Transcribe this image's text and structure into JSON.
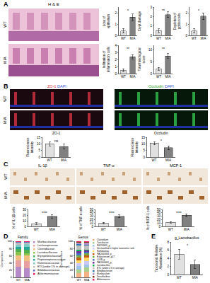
{
  "chart_data": [
    {
      "type": "bar",
      "y_label": "Loss of epithelium",
      "categories": [
        "WT",
        "MIA"
      ],
      "values": [
        0.4,
        1.6
      ],
      "errors": [
        0.2,
        0.3
      ],
      "colors": [
        "#e0e0e0",
        "#808080"
      ],
      "ylim": [
        0,
        2.5
      ],
      "yticks": [
        0,
        1,
        2
      ],
      "annotations": [
        "*"
      ]
    },
    {
      "type": "bar",
      "y_label": "Crypt damage",
      "categories": [
        "WT",
        "MIA"
      ],
      "values": [
        0.5,
        2.2
      ],
      "errors": [
        0.2,
        0.3
      ],
      "colors": [
        "#e0e0e0",
        "#808080"
      ],
      "ylim": [
        0,
        3
      ],
      "yticks": [
        0,
        1,
        2,
        3
      ],
      "annotations": [
        "**"
      ]
    },
    {
      "type": "bar",
      "y_label": "Depletion of goblet cells",
      "categories": [
        "WT",
        "MIA"
      ],
      "values": [
        0.4,
        1.7
      ],
      "errors": [
        0.2,
        0.3
      ],
      "colors": [
        "#e0e0e0",
        "#808080"
      ],
      "ylim": [
        0,
        2.5
      ],
      "yticks": [
        0,
        1,
        2
      ],
      "annotations": [
        "*"
      ]
    },
    {
      "type": "bar",
      "y_label": "Infiltration of inflammatory cells",
      "categories": [
        "WT",
        "MIA"
      ],
      "values": [
        0.5,
        2.4
      ],
      "errors": [
        0.2,
        0.3
      ],
      "colors": [
        "#e0e0e0",
        "#808080"
      ],
      "ylim": [
        0,
        4
      ],
      "yticks": [
        0,
        1,
        2,
        3,
        4
      ],
      "annotations": [
        "**"
      ]
    },
    {
      "type": "bar",
      "y_label": "Total histological score",
      "categories": [
        "WT",
        "MIA"
      ],
      "values": [
        2,
        7.5
      ],
      "errors": [
        0.6,
        1
      ],
      "colors": [
        "#e0e0e0",
        "#808080"
      ],
      "ylim": [
        0,
        12
      ],
      "yticks": [
        0,
        5,
        10
      ],
      "annotations": [
        "**"
      ]
    },
    {
      "type": "bar",
      "title": "ZO-1",
      "y_label": "Fluorescence intensity",
      "categories": [
        "WT",
        "MIA"
      ],
      "values": [
        10,
        8
      ],
      "errors": [
        1.5,
        1.8
      ],
      "colors": [
        "#e0e0e0",
        "#808080"
      ],
      "ylim": [
        0,
        15
      ],
      "yticks": [
        0,
        5,
        10,
        15
      ],
      "annotations": [
        "ns"
      ]
    },
    {
      "type": "bar",
      "title": "Occludin",
      "y_label": "Fluorescence intensity",
      "categories": [
        "WT",
        "MIA"
      ],
      "values": [
        10.5,
        7
      ],
      "errors": [
        1.2,
        1.5
      ],
      "colors": [
        "#e0e0e0",
        "#808080"
      ],
      "ylim": [
        0,
        15
      ],
      "yticks": [
        0,
        5,
        10,
        15
      ],
      "annotations": [
        "*"
      ]
    },
    {
      "type": "bar",
      "y_label": "% of IL-1β cells",
      "categories": [
        "WT",
        "MIA"
      ],
      "values": [
        5,
        18
      ],
      "errors": [
        1.5,
        3
      ],
      "colors": [
        "#e0e0e0",
        "#808080"
      ],
      "ylim": [
        0,
        30
      ],
      "yticks": [
        0,
        10,
        20,
        30
      ],
      "annotations": [
        "****"
      ]
    },
    {
      "type": "bar",
      "y_label": "% of TNF-α cells",
      "categories": [
        "WT",
        "MIA"
      ],
      "values": [
        10,
        30
      ],
      "errors": [
        2,
        4
      ],
      "colors": [
        "#e0e0e0",
        "#808080"
      ],
      "ylim": [
        0,
        50
      ],
      "yticks": [
        0,
        10,
        20,
        30,
        40,
        50
      ],
      "annotations": [
        "****"
      ]
    },
    {
      "type": "bar",
      "y_label": "% of MCP-1 cells",
      "categories": [
        "WT",
        "MIA"
      ],
      "values": [
        12,
        33
      ],
      "errors": [
        2,
        4
      ],
      "colors": [
        "#e0e0e0",
        "#808080"
      ],
      "ylim": [
        0,
        50
      ],
      "yticks": [
        0,
        10,
        20,
        30,
        40,
        50
      ],
      "annotations": [
        "****"
      ]
    },
    {
      "type": "bar",
      "stacked": true,
      "title": "Family",
      "y_label": "Composition",
      "categories": [
        "WT",
        "MIA"
      ],
      "ylim": [
        0,
        100
      ],
      "yticks": [
        0,
        20,
        40,
        60,
        80,
        100
      ],
      "series": [
        {
          "name": "Muribaculaceae",
          "color": "#b58ac8",
          "values": [
            30,
            25
          ]
        },
        {
          "name": "Lachnospiraceae",
          "color": "#e8a0a0",
          "values": [
            18,
            20
          ]
        },
        {
          "name": "Clostridiaceae",
          "color": "#f0c080",
          "values": [
            12,
            15
          ]
        },
        {
          "name": "Lactobacillaceae",
          "color": "#8bc34a",
          "values": [
            10,
            6
          ]
        },
        {
          "name": "Erysipelotrichaceae",
          "color": "#4caf50",
          "values": [
            8,
            10
          ]
        },
        {
          "name": "Peptostreptococcaceae",
          "color": "#26a69a",
          "values": [
            7,
            9
          ]
        },
        {
          "name": "Ruminococcaceae",
          "color": "#80cbc4",
          "values": [
            6,
            7
          ]
        },
        {
          "name": "ETC(under 1% in average)",
          "color": "#bdbdbd",
          "values": [
            5,
            5
          ]
        },
        {
          "name": "Bifidobacteriaceae",
          "color": "#5c6bc0",
          "values": [
            2,
            1
          ]
        },
        {
          "name": "Akkermansiaceae",
          "color": "#e91e63",
          "values": [
            2,
            2
          ]
        }
      ]
    },
    {
      "type": "bar",
      "stacked": true,
      "title": "Genus",
      "y_label": "Composition",
      "categories": [
        "WT",
        "MIA"
      ],
      "ylim": [
        0,
        100
      ],
      "yticks": [
        0,
        20,
        40,
        60,
        80,
        100
      ],
      "series": [
        {
          "name": "Clostridium",
          "color": "#f4b183",
          "values": [
            12,
            16
          ]
        },
        {
          "name": "Turicibacter",
          "color": "#a9d18e",
          "values": [
            10,
            12
          ]
        },
        {
          "name": "KE159605_g",
          "color": "#9dc3e6",
          "values": [
            9,
            8
          ]
        },
        {
          "name": "Unclassified in higher taxonomic rank",
          "color": "#c9c9ff",
          "values": [
            9,
            10
          ]
        },
        {
          "name": "Romboutsia",
          "color": "#ffd966",
          "values": [
            8,
            9
          ]
        },
        {
          "name": "PAC000664_g",
          "color": "#c55a11",
          "values": [
            7,
            6
          ]
        },
        {
          "name": "Eubacterium_g17",
          "color": "#70ad47",
          "values": [
            6,
            5
          ]
        },
        {
          "name": "LLKB_g",
          "color": "#4472c4",
          "values": [
            6,
            5
          ]
        },
        {
          "name": "PAC000661_g",
          "color": "#7030a0",
          "values": [
            5,
            4
          ]
        },
        {
          "name": "Lactobacillus",
          "color": "#00b050",
          "values": [
            5,
            2
          ]
        },
        {
          "name": "ETC (under 1% in average)",
          "color": "#bfbfbf",
          "values": [
            12,
            12
          ]
        },
        {
          "name": "Bifidobacterium",
          "color": "#2e75b6",
          "values": [
            3,
            2
          ]
        },
        {
          "name": "Muribaculum",
          "color": "#b58ac8",
          "values": [
            4,
            5
          ]
        },
        {
          "name": "Desulfovibrio",
          "color": "#843c0c",
          "values": [
            2,
            2
          ]
        },
        {
          "name": "Akkermansia",
          "color": "#e91e63",
          "values": [
            2,
            2
          ]
        }
      ]
    },
    {
      "type": "bar",
      "title": "g_Lactobacillus",
      "y_label": "Taxonomic Relative Abundance (%)",
      "categories": [
        "WT",
        "MIA"
      ],
      "values": [
        5,
        2.5
      ],
      "errors": [
        1.2,
        1
      ],
      "colors": [
        "#e0e0e0",
        "#808080"
      ],
      "ylim": [
        0,
        8
      ],
      "yticks": [
        0,
        2,
        4,
        6,
        8
      ],
      "annotations": [
        "*"
      ]
    }
  ],
  "labels": {
    "panel_letters": [
      "A",
      "B",
      "C",
      "D",
      "E"
    ],
    "groups": [
      "WT",
      "MIA"
    ],
    "he_title": "H & E",
    "stains_b": [
      [
        {
          "text": "ZO-1",
          "color": "#e03030"
        },
        {
          "text": "DAPI",
          "color": "#3050e0"
        }
      ],
      [
        {
          "text": "Occludin",
          "color": "#20a020"
        },
        {
          "text": "DAPI",
          "color": "#3050e0"
        }
      ]
    ],
    "stains_c": [
      "IL-1β",
      "TNF-α",
      "MCP-1"
    ]
  }
}
